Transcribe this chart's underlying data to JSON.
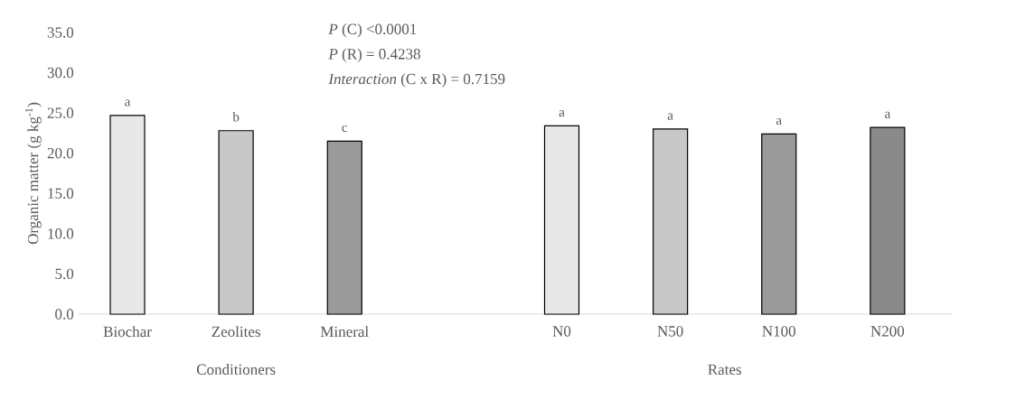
{
  "chart_data": {
    "type": "bar",
    "ylabel": "Organic matter (g kg$^{-1}$)",
    "categories": [
      "Biochar",
      "Zeolites",
      "Mineral",
      null,
      "N0",
      "N50",
      "N100",
      "N200"
    ],
    "values": [
      24.7,
      22.8,
      21.5,
      null,
      23.4,
      23.0,
      22.4,
      23.2
    ],
    "colors": [
      "#e8e8e8",
      "#c8c8c8",
      "#9a9a9a",
      null,
      "#e8e8e8",
      "#c8c8c8",
      "#9a9a9a",
      "#8a8a8a"
    ],
    "value_labels": [
      "a",
      "b",
      "c",
      null,
      "a",
      "a",
      "a",
      "a"
    ],
    "ylim": [
      0,
      35
    ],
    "yticks": [
      {
        "value": 0,
        "label": "0.0"
      },
      {
        "value": 5,
        "label": "5.0"
      },
      {
        "value": 10,
        "label": "10.0"
      },
      {
        "value": 15,
        "label": "15.0"
      },
      {
        "value": 20,
        "label": "20.0"
      },
      {
        "value": 25,
        "label": "25.0"
      },
      {
        "value": 30,
        "label": "30.0"
      },
      {
        "value": 35,
        "label": "35.0"
      }
    ],
    "annotations": [
      "*P* (C) <0.0001",
      "*P* (R) = 0.4238",
      "*Interaction* (C x R) = 0.7159",
      "Conditioners",
      "Rates"
    ]
  }
}
